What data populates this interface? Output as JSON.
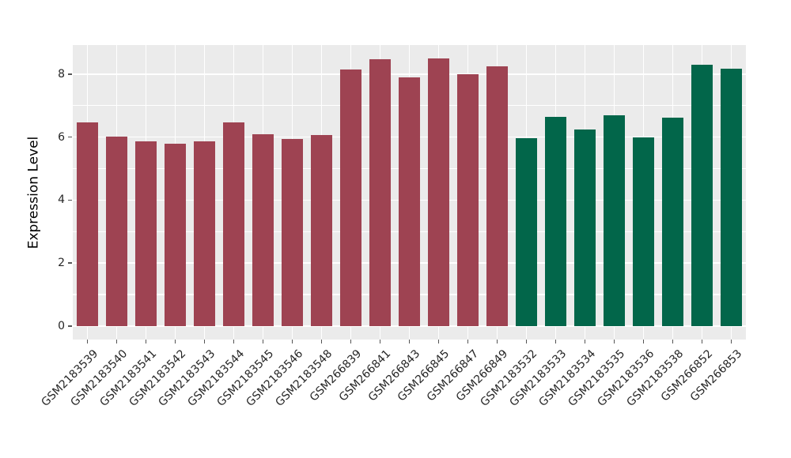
{
  "chart_data": {
    "type": "bar",
    "title": "",
    "xlabel": "",
    "ylabel": "Expression Level",
    "categories": [
      "GSM2183539",
      "GSM2183540",
      "GSM2183541",
      "GSM2183542",
      "GSM2183543",
      "GSM2183544",
      "GSM2183545",
      "GSM2183546",
      "GSM2183548",
      "GSM266839",
      "GSM266841",
      "GSM266843",
      "GSM266845",
      "GSM266847",
      "GSM266849",
      "GSM2183532",
      "GSM2183533",
      "GSM2183534",
      "GSM2183535",
      "GSM2183536",
      "GSM2183538",
      "GSM266852",
      "GSM266853"
    ],
    "values": [
      6.47,
      6.01,
      5.87,
      5.78,
      5.87,
      6.47,
      6.09,
      5.93,
      6.07,
      8.14,
      8.46,
      7.89,
      8.5,
      8.0,
      8.25,
      5.97,
      6.64,
      6.23,
      6.7,
      6.0,
      6.62,
      8.3,
      8.18
    ],
    "bar_groups": [
      "a",
      "a",
      "a",
      "a",
      "a",
      "a",
      "a",
      "a",
      "a",
      "a",
      "a",
      "a",
      "a",
      "a",
      "a",
      "b",
      "b",
      "b",
      "b",
      "b",
      "b",
      "b",
      "b"
    ],
    "group_colors": {
      "a": "#9E4352",
      "b": "#02664A"
    },
    "ytick_labels": [
      "0",
      "2",
      "4",
      "6",
      "8"
    ],
    "yticks": [
      0,
      2,
      4,
      6,
      8
    ],
    "gridline_values": [
      0,
      1,
      2,
      3,
      4,
      5,
      6,
      7,
      8
    ],
    "ylim": [
      -0.43,
      8.93
    ],
    "x_label_rotation_deg": 45,
    "legend": "none",
    "colors": {
      "panel_background": "#EBEBEB",
      "figure_background": "#FFFFFF",
      "gridline": "#FFFFFF",
      "tick_text": "#262626",
      "axis_title_text": "#000000"
    }
  }
}
